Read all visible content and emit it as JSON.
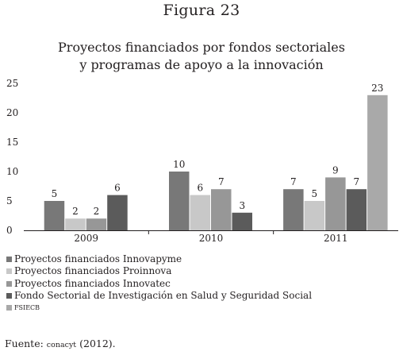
{
  "figure_label": "Figura 23",
  "source": {
    "prefix": "Fuente:",
    "org": "conacyt",
    "year": "(2012)."
  },
  "chart_data": {
    "type": "bar",
    "title_lines": [
      "Proyectos financiados por fondos sectoriales",
      "y programas de apoyo a la innovación"
    ],
    "categories": [
      "2009",
      "2010",
      "2011"
    ],
    "ylim": [
      0,
      25
    ],
    "yticks": [
      0,
      5,
      10,
      15,
      20,
      25
    ],
    "grid": false,
    "legend_position": "bottom-left",
    "series": [
      {
        "name": "Proyectos financiados Innovapyme",
        "color": "#787878",
        "values": [
          5,
          10,
          7
        ]
      },
      {
        "name": "Proyectos financiados Proinnova",
        "color": "#c8c8c8",
        "values": [
          2,
          6,
          5
        ]
      },
      {
        "name": "Proyectos financiados Innovatec",
        "color": "#979797",
        "values": [
          2,
          7,
          9
        ]
      },
      {
        "name": "Fondo Sectorial de Investigación en Salud y Seguridad Social",
        "color": "#5b5b5b",
        "values": [
          6,
          3,
          7
        ]
      },
      {
        "name": "FSIECB",
        "color": "#a9a9a9",
        "values": [
          null,
          null,
          23
        ]
      }
    ]
  }
}
